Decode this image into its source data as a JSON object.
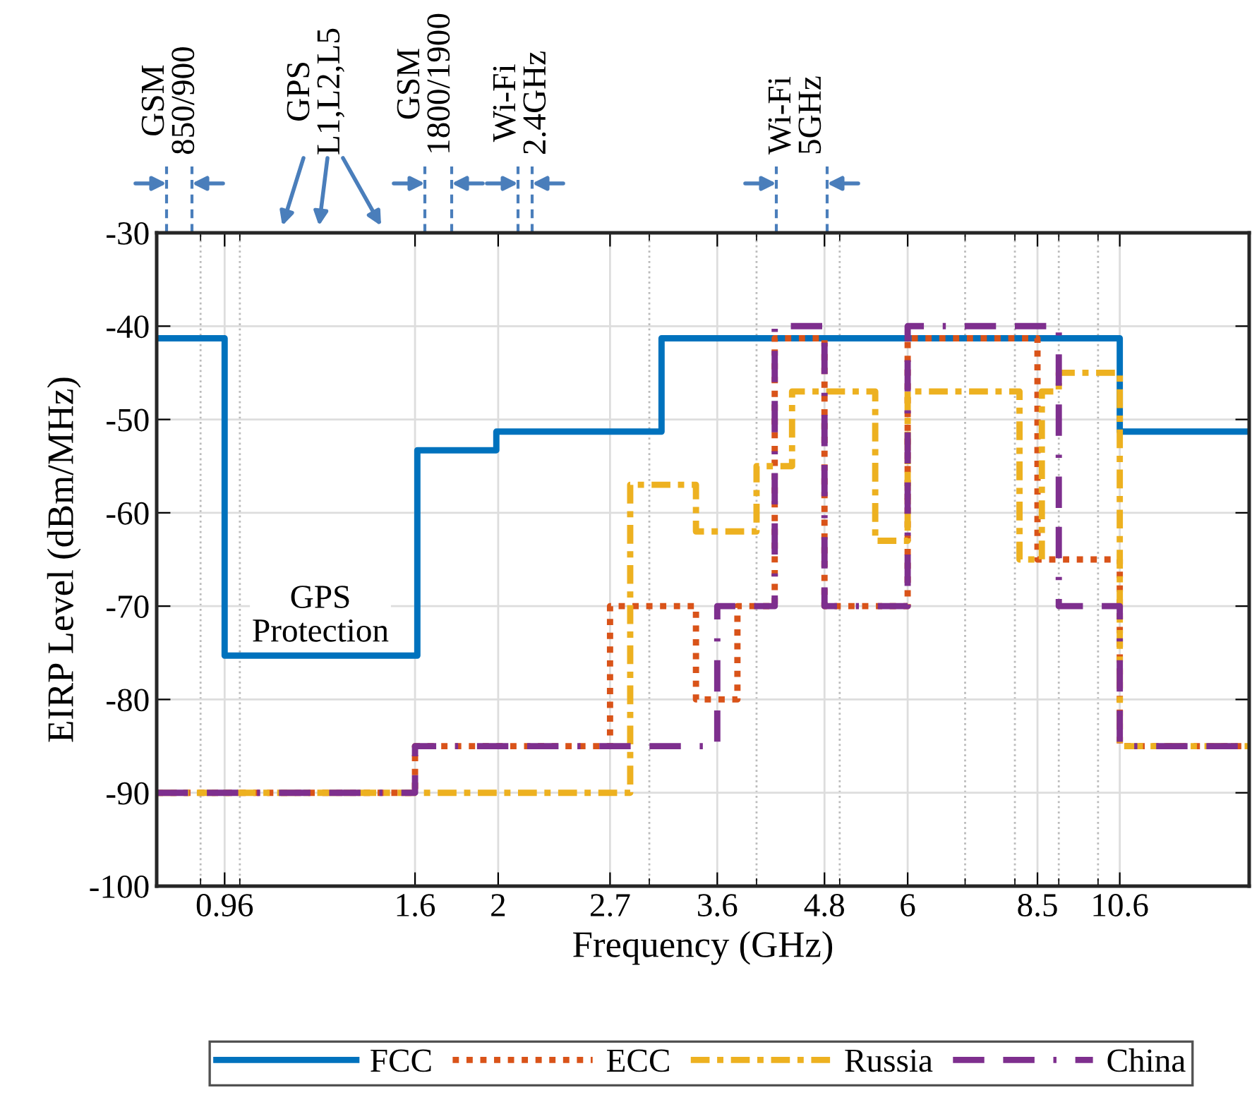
{
  "chart_data": {
    "type": "step",
    "xlabel": "Frequency (GHz)",
    "ylabel": "EIRP Level (dBm/MHz)",
    "log": "x",
    "xlim": [
      0.8,
      15
    ],
    "ylim": [
      -100,
      -30
    ],
    "xticks": [
      0.96,
      1.6,
      2,
      2.7,
      3.6,
      4.8,
      6,
      8.5,
      10.6,
      {
        "value": 0.9,
        "label": null
      },
      {
        "value": 1,
        "label": null
      },
      {
        "value": 3,
        "label": null
      },
      {
        "value": 4,
        "label": null
      },
      {
        "value": 5,
        "label": null
      },
      {
        "value": 7,
        "label": null
      },
      {
        "value": 8,
        "label": null
      },
      {
        "value": 9,
        "label": null
      },
      {
        "value": 10,
        "label": null
      }
    ],
    "yticks": [
      -100,
      -90,
      -80,
      -70,
      -60,
      -50,
      -40,
      -30
    ],
    "grid": true,
    "legend": "bottom",
    "marker": "none",
    "series": [
      {
        "name": "FCC",
        "color": "#0072bd",
        "line_style": "solid",
        "x": [
          0.8,
          0.96,
          1.61,
          1.99,
          3.1,
          10.6,
          15
        ],
        "values": [
          -41.3,
          -75.3,
          -53.3,
          -51.3,
          -41.3,
          -51.3,
          -51.3
        ]
      },
      {
        "name": "ECC",
        "color": "#d95319",
        "line_style": "dotted",
        "x": [
          0.8,
          1.6,
          2.7,
          3.4,
          3.8,
          4.2,
          4.8,
          6,
          8.5,
          10.6,
          15
        ],
        "values": [
          -90,
          -85,
          -70,
          -80,
          -70,
          -41.3,
          -70,
          -41.3,
          -65,
          -85,
          -85
        ]
      },
      {
        "name": "Russia",
        "color": "#edb120",
        "line_style": "dashdot",
        "x": [
          0.8,
          2.85,
          3.4,
          4.0,
          4.4,
          5.5,
          6,
          8.1,
          8.6,
          9,
          10.6,
          15
        ],
        "values": [
          -90,
          -57,
          -62,
          -55,
          -47,
          -63,
          -47,
          -65,
          -47,
          -45,
          -85,
          -85
        ]
      },
      {
        "name": "China",
        "color": "#7e2f8e",
        "line_style": "dashed",
        "x": [
          0.8,
          1.6,
          3.6,
          4.2,
          4.8,
          6,
          9,
          10.6,
          15
        ],
        "values": [
          -90,
          -85,
          -70,
          -40,
          -70,
          -40,
          -70,
          -85,
          -85
        ]
      }
    ],
    "annotations": [
      "GSM\n850/900",
      "GPS\nL1,L2,L5",
      "GSM\n1800/1900",
      "Wi-Fi\n2.4GHz",
      "Wi-Fi\n5GHz",
      "GPS\nProtection"
    ]
  }
}
